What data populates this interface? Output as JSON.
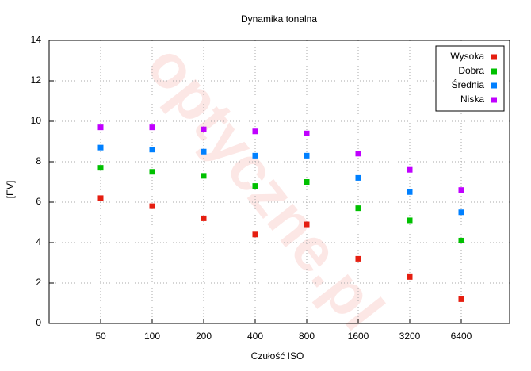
{
  "chart_data": {
    "type": "scatter",
    "title": "Dynamika tonalna",
    "x_label": "Czułość ISO",
    "y_label": "[EV]",
    "watermark": "optyczne.pl",
    "categories": [
      "50",
      "100",
      "200",
      "400",
      "800",
      "1600",
      "3200",
      "6400"
    ],
    "series": [
      {
        "name": "Wysoka",
        "color": "#e51e10",
        "values": [
          6.2,
          5.8,
          5.2,
          4.4,
          4.9,
          3.2,
          2.3,
          1.2
        ]
      },
      {
        "name": "Dobra",
        "color": "#00c000",
        "values": [
          7.7,
          7.5,
          7.3,
          6.8,
          7.0,
          5.7,
          5.1,
          4.1
        ]
      },
      {
        "name": "Średnia",
        "color": "#0080ff",
        "values": [
          8.7,
          8.6,
          8.5,
          8.3,
          8.3,
          7.2,
          6.5,
          5.5
        ]
      },
      {
        "name": "Niska",
        "color": "#c000ff",
        "values": [
          9.7,
          9.7,
          9.6,
          9.5,
          9.4,
          8.4,
          7.6,
          6.6
        ]
      }
    ],
    "ylim": [
      0,
      14
    ],
    "yticks": [
      0,
      2,
      4,
      6,
      8,
      10,
      12,
      14
    ],
    "grid": true,
    "legend": "top-right"
  }
}
